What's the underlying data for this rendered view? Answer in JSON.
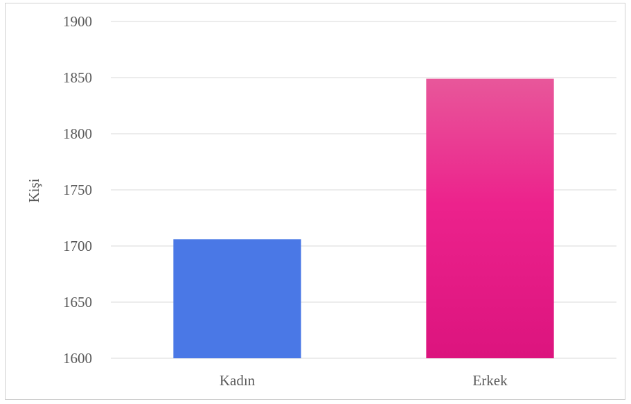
{
  "chart_data": {
    "type": "bar",
    "title": "",
    "xlabel": "",
    "ylabel": "Kişi",
    "ylim": [
      1600,
      1900
    ],
    "yticks": [
      1600,
      1650,
      1700,
      1750,
      1800,
      1850,
      1900
    ],
    "grid": true,
    "legend": "none",
    "categories": [
      "Kadın",
      "Erkek"
    ],
    "values": [
      1706,
      1849
    ],
    "colors": [
      "#4a78e6",
      "#e31c82"
    ]
  }
}
